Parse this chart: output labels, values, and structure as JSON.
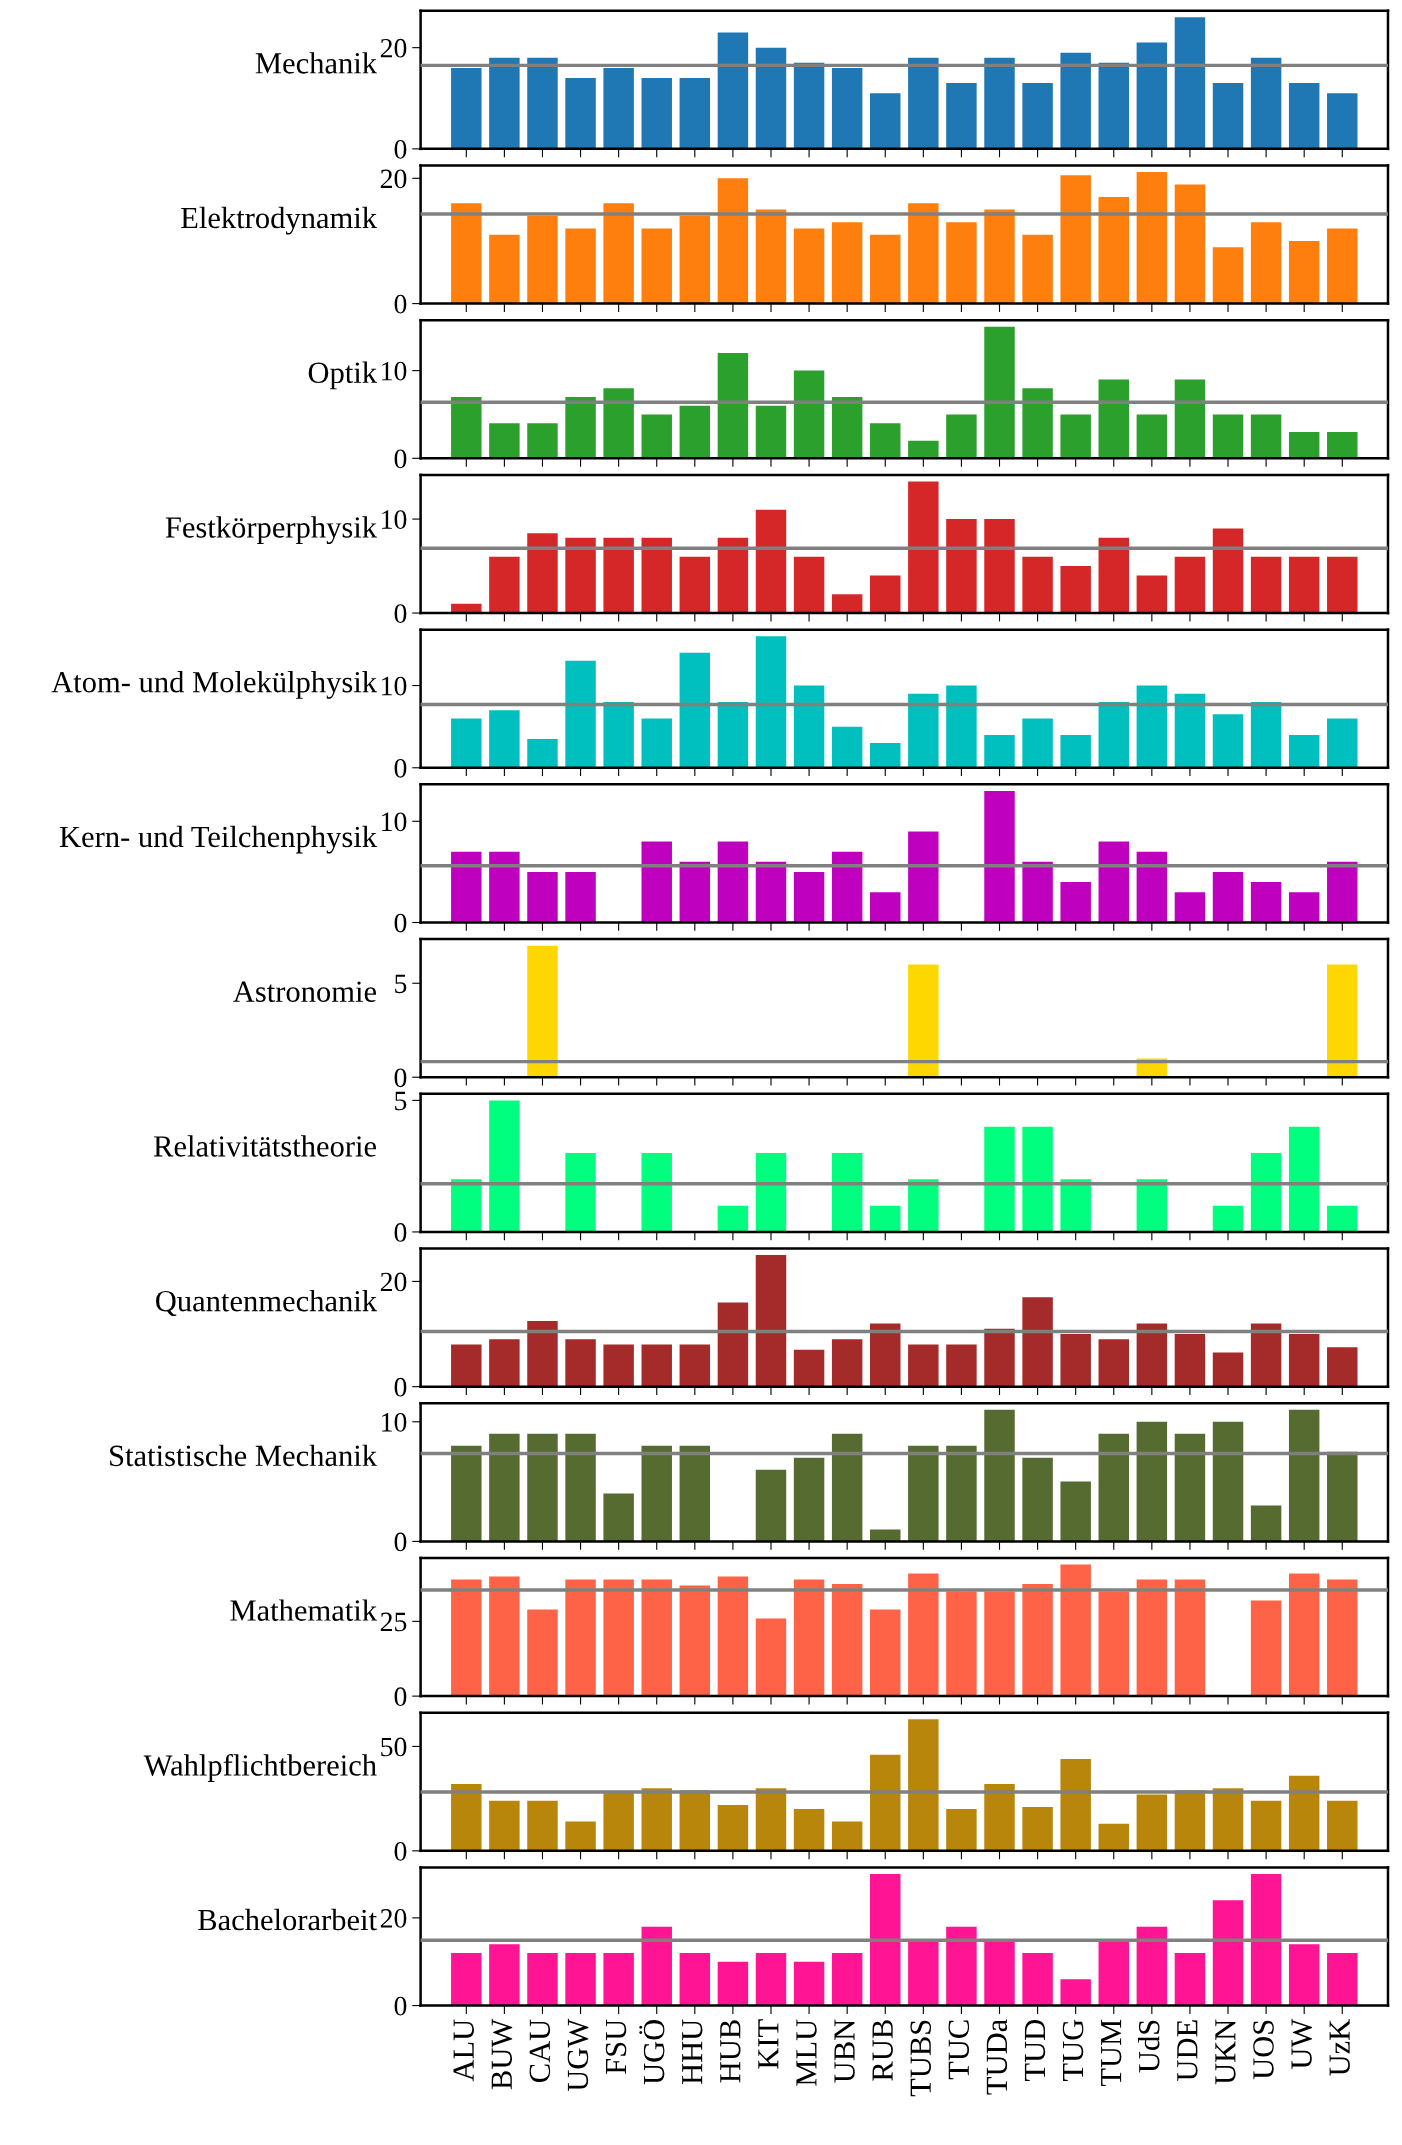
{
  "chart_data": [
    {
      "type": "bar",
      "ylabel": "Mechanik",
      "categories": [
        null,
        null,
        null,
        null,
        null,
        null,
        null,
        null,
        null,
        null,
        null,
        null,
        null,
        null,
        null,
        null,
        null,
        null,
        null,
        null,
        null,
        null,
        null,
        null
      ],
      "values": [
        16,
        18,
        18,
        14,
        16,
        14,
        14,
        23,
        20,
        17,
        16,
        11,
        18,
        13,
        18,
        13,
        19,
        17,
        21,
        26,
        13,
        18,
        13,
        11
      ],
      "color": "#1f77b4",
      "ylim": [
        0,
        27.3
      ],
      "yticks": [
        0,
        20
      ],
      "ref_lines": [
        {
          "axis": "y",
          "value": 16.5,
          "color": "#808080"
        }
      ],
      "tick_labels": "y"
    },
    {
      "type": "bar",
      "ylabel": "Elektrodynamik",
      "categories": [
        null,
        null,
        null,
        null,
        null,
        null,
        null,
        null,
        null,
        null,
        null,
        null,
        null,
        null,
        null,
        null,
        null,
        null,
        null,
        null,
        null,
        null,
        null,
        null
      ],
      "values": [
        16,
        11,
        14,
        12,
        16,
        12,
        14,
        20,
        15,
        12,
        13,
        11,
        16,
        13,
        15,
        11,
        20.5,
        17,
        21,
        19,
        9,
        13,
        10,
        12
      ],
      "color": "#ff7f0e",
      "ylim": [
        0,
        22.05
      ],
      "yticks": [
        0,
        20
      ],
      "ref_lines": [
        {
          "axis": "y",
          "value": 14.3,
          "color": "#808080"
        }
      ],
      "tick_labels": "y"
    },
    {
      "type": "bar",
      "ylabel": "Optik",
      "categories": [
        null,
        null,
        null,
        null,
        null,
        null,
        null,
        null,
        null,
        null,
        null,
        null,
        null,
        null,
        null,
        null,
        null,
        null,
        null,
        null,
        null,
        null,
        null,
        null
      ],
      "values": [
        7,
        4,
        4,
        7,
        8,
        5,
        6,
        12,
        6,
        10,
        7,
        4,
        2,
        5,
        15,
        8,
        5,
        9,
        5,
        9,
        5,
        5,
        3,
        3
      ],
      "color": "#2ca02c",
      "ylim": [
        0,
        15.75
      ],
      "yticks": [
        0,
        10
      ],
      "ref_lines": [
        {
          "axis": "y",
          "value": 6.4,
          "color": "#808080"
        }
      ],
      "tick_labels": "y"
    },
    {
      "type": "bar",
      "ylabel": "Festkörperphysik",
      "categories": [
        null,
        null,
        null,
        null,
        null,
        null,
        null,
        null,
        null,
        null,
        null,
        null,
        null,
        null,
        null,
        null,
        null,
        null,
        null,
        null,
        null,
        null,
        null,
        null
      ],
      "values": [
        1,
        6,
        8.5,
        8,
        8,
        8,
        6,
        8,
        11,
        6,
        2,
        4,
        14,
        10,
        10,
        6,
        5,
        8,
        4,
        6,
        9,
        6,
        6,
        6
      ],
      "color": "#d62728",
      "ylim": [
        0,
        14.7
      ],
      "yticks": [
        0,
        10
      ],
      "ref_lines": [
        {
          "axis": "y",
          "value": 6.9,
          "color": "#808080"
        }
      ],
      "tick_labels": "y"
    },
    {
      "type": "bar",
      "ylabel": "Atom- und Molekülphysik",
      "categories": [
        null,
        null,
        null,
        null,
        null,
        null,
        null,
        null,
        null,
        null,
        null,
        null,
        null,
        null,
        null,
        null,
        null,
        null,
        null,
        null,
        null,
        null,
        null,
        null
      ],
      "values": [
        6,
        7,
        3.5,
        13,
        8,
        6,
        14,
        8,
        16,
        10,
        5,
        3,
        9,
        10,
        4,
        6,
        4,
        8,
        10,
        9,
        6.5,
        8,
        4,
        6
      ],
      "color": "#00bfbf",
      "ylim": [
        0,
        16.8
      ],
      "yticks": [
        0,
        10
      ],
      "ref_lines": [
        {
          "axis": "y",
          "value": 7.7,
          "color": "#808080"
        }
      ],
      "tick_labels": "y"
    },
    {
      "type": "bar",
      "ylabel": "Kern- und Teilchenphysik",
      "categories": [
        null,
        null,
        null,
        null,
        null,
        null,
        null,
        null,
        null,
        null,
        null,
        null,
        null,
        null,
        null,
        null,
        null,
        null,
        null,
        null,
        null,
        null,
        null,
        null
      ],
      "values": [
        7,
        7,
        5,
        5,
        0,
        8,
        6,
        8,
        6,
        5,
        7,
        3,
        9,
        0,
        13,
        6,
        4,
        8,
        7,
        3,
        5,
        4,
        3,
        6
      ],
      "color": "#bf00bf",
      "ylim": [
        0,
        13.65
      ],
      "yticks": [
        0,
        10
      ],
      "ref_lines": [
        {
          "axis": "y",
          "value": 5.6,
          "color": "#808080"
        }
      ],
      "tick_labels": "y"
    },
    {
      "type": "bar",
      "ylabel": "Astronomie",
      "categories": [
        null,
        null,
        null,
        null,
        null,
        null,
        null,
        null,
        null,
        null,
        null,
        null,
        null,
        null,
        null,
        null,
        null,
        null,
        null,
        null,
        null,
        null,
        null,
        null
      ],
      "values": [
        0,
        0,
        7,
        0,
        0,
        0,
        0,
        0,
        0,
        0,
        0,
        0,
        6,
        0,
        0,
        0,
        0,
        0,
        1,
        0,
        0,
        0,
        0,
        6
      ],
      "color": "#ffd700",
      "ylim": [
        0,
        7.35
      ],
      "yticks": [
        0,
        5
      ],
      "ref_lines": [
        {
          "axis": "y",
          "value": 0.83,
          "color": "#808080"
        }
      ],
      "tick_labels": "y"
    },
    {
      "type": "bar",
      "ylabel": "Relativitätstheorie",
      "categories": [
        null,
        null,
        null,
        null,
        null,
        null,
        null,
        null,
        null,
        null,
        null,
        null,
        null,
        null,
        null,
        null,
        null,
        null,
        null,
        null,
        null,
        null,
        null,
        null
      ],
      "values": [
        2,
        5,
        0,
        3,
        0,
        3,
        0,
        1,
        3,
        0,
        3,
        1,
        2,
        0,
        4,
        4,
        2,
        0,
        2,
        0,
        1,
        3,
        4,
        1
      ],
      "color": "#00ff7f",
      "ylim": [
        0,
        5.25
      ],
      "yticks": [
        0,
        5
      ],
      "ref_lines": [
        {
          "axis": "y",
          "value": 1.83,
          "color": "#808080"
        }
      ],
      "tick_labels": "y"
    },
    {
      "type": "bar",
      "ylabel": "Quantenmechanik",
      "categories": [
        null,
        null,
        null,
        null,
        null,
        null,
        null,
        null,
        null,
        null,
        null,
        null,
        null,
        null,
        null,
        null,
        null,
        null,
        null,
        null,
        null,
        null,
        null,
        null
      ],
      "values": [
        8,
        9,
        12.5,
        9,
        8,
        8,
        8,
        16,
        25,
        7,
        9,
        12,
        8,
        8,
        11,
        17,
        10,
        9,
        12,
        10,
        6.5,
        12,
        10,
        7.5
      ],
      "color": "#a52a2a",
      "ylim": [
        0,
        26.25
      ],
      "yticks": [
        0,
        20
      ],
      "ref_lines": [
        {
          "axis": "y",
          "value": 10.5,
          "color": "#808080"
        }
      ],
      "tick_labels": "y"
    },
    {
      "type": "bar",
      "ylabel": "Statistische Mechanik",
      "categories": [
        null,
        null,
        null,
        null,
        null,
        null,
        null,
        null,
        null,
        null,
        null,
        null,
        null,
        null,
        null,
        null,
        null,
        null,
        null,
        null,
        null,
        null,
        null,
        null
      ],
      "values": [
        8,
        9,
        9,
        9,
        4,
        8,
        8,
        0,
        6,
        7,
        9,
        1,
        8,
        8,
        11,
        7,
        5,
        9,
        10,
        9,
        10,
        3,
        11,
        7.5
      ],
      "color": "#556b2f",
      "ylim": [
        0,
        11.55
      ],
      "yticks": [
        0,
        10
      ],
      "ref_lines": [
        {
          "axis": "y",
          "value": 7.35,
          "color": "#808080"
        }
      ],
      "tick_labels": "y"
    },
    {
      "type": "bar",
      "ylabel": "Mathematik",
      "categories": [
        null,
        null,
        null,
        null,
        null,
        null,
        null,
        null,
        null,
        null,
        null,
        null,
        null,
        null,
        null,
        null,
        null,
        null,
        null,
        null,
        null,
        null,
        null,
        null
      ],
      "values": [
        39,
        40,
        29,
        39,
        39,
        39,
        37,
        40,
        26,
        39,
        37.5,
        29,
        41,
        35,
        35,
        37.5,
        44,
        35,
        39,
        39,
        0,
        32,
        41,
        39
      ],
      "color": "#ff6347",
      "ylim": [
        0,
        46.2
      ],
      "yticks": [
        0,
        25
      ],
      "ref_lines": [
        {
          "axis": "y",
          "value": 35.5,
          "color": "#808080"
        }
      ],
      "tick_labels": "y"
    },
    {
      "type": "bar",
      "ylabel": "Wahlpflichtbereich",
      "categories": [
        null,
        null,
        null,
        null,
        null,
        null,
        null,
        null,
        null,
        null,
        null,
        null,
        null,
        null,
        null,
        null,
        null,
        null,
        null,
        null,
        null,
        null,
        null,
        null
      ],
      "values": [
        32,
        24,
        24,
        14,
        28.5,
        30,
        29,
        22,
        30,
        20,
        14,
        46,
        63,
        20,
        32,
        21,
        44,
        13,
        27,
        29,
        30,
        24,
        36,
        24
      ],
      "color": "#b8860b",
      "ylim": [
        0,
        66.15
      ],
      "yticks": [
        0,
        50
      ],
      "ref_lines": [
        {
          "axis": "y",
          "value": 28.2,
          "color": "#808080"
        }
      ],
      "tick_labels": "y"
    },
    {
      "type": "bar",
      "ylabel": "Bachelorarbeit",
      "categories": [
        "ALU",
        "BUW",
        "CAU",
        "UGW",
        "FSU",
        "UGÖ",
        "HHU",
        "HUB",
        "KIT",
        "MLU",
        "UBN",
        "RUB",
        "TUBS",
        "TUC",
        "TUDa",
        "TUD",
        "TUG",
        "TUM",
        "UdS",
        "UDE",
        "UKN",
        "UOS",
        "UW",
        "UzK"
      ],
      "values": [
        12,
        14,
        12,
        12,
        12,
        18,
        12,
        10,
        12,
        10,
        12,
        30,
        15,
        18,
        15,
        12,
        6,
        15,
        18,
        12,
        24,
        30,
        14,
        12
      ],
      "color": "#ff1493",
      "ylim": [
        0,
        31.5
      ],
      "yticks": [
        0,
        20
      ],
      "ref_lines": [
        {
          "axis": "y",
          "value": 14.9,
          "color": "#808080"
        }
      ]
    }
  ]
}
